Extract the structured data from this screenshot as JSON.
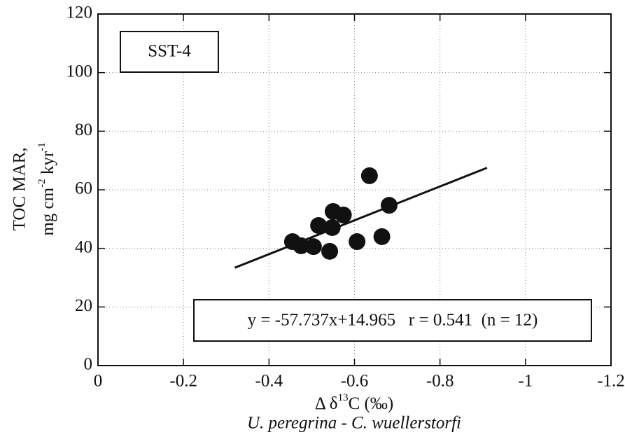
{
  "chart_data": {
    "type": "scatter",
    "x": [
      -0.635,
      -0.681,
      -0.574,
      -0.55,
      -0.548,
      -0.516,
      -0.664,
      -0.606,
      -0.455,
      -0.475,
      -0.504,
      -0.542
    ],
    "values": [
      64.8,
      54.7,
      51.4,
      52.6,
      47.1,
      47.8,
      44.0,
      42.3,
      42.3,
      40.9,
      40.6,
      39.0
    ],
    "color": "#111111",
    "fit": {
      "x": [
        -0.32,
        -0.91
      ],
      "values": [
        33.4,
        67.5
      ]
    },
    "xlim": [
      0,
      -1.2
    ],
    "xticks": [
      0,
      -0.2,
      -0.4,
      -0.6,
      -0.8,
      -1,
      -1.2
    ],
    "ylim": [
      0,
      120
    ],
    "yticks": [
      0,
      20,
      40,
      60,
      80,
      100,
      120
    ],
    "grid": true,
    "label_box": "SST-4",
    "equation": "y = -57.737x+14.965   r = 0.541  (n = 12)",
    "y_label": {
      "line1": "TOC  MAR,",
      "line2": [
        "mg cm",
        "-2",
        " kyr",
        "-1"
      ]
    },
    "x_label": {
      "line1": [
        "Δ δ",
        "13",
        "C  (‰)"
      ],
      "line2": "U. peregrina - C. wuellerstorfi"
    }
  }
}
